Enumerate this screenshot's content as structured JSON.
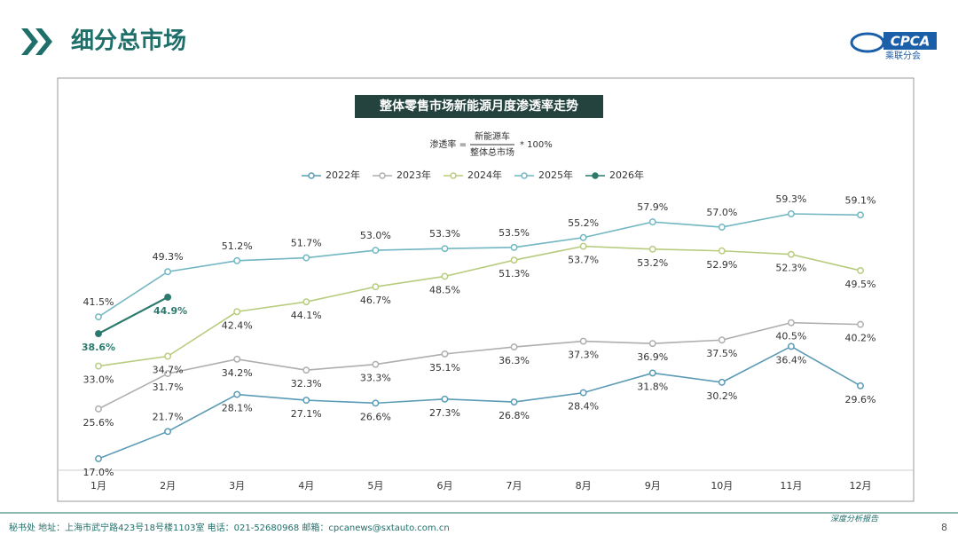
{
  "header": {
    "title": "细分总市场",
    "logo_text": "CPCA",
    "logo_sub": "乘联分会"
  },
  "formula": {
    "lhs": "渗透率 =",
    "numerator": "新能源车",
    "denominator": "整体总市场",
    "factor": "* 100%"
  },
  "footer": {
    "contact": "秘书处   地址：上海市武宁路423号18号楼1103室   电话：021-52680968    邮箱：cpcanews@sxtauto.com.cn",
    "report": "深度分析报告",
    "page": "8"
  },
  "chart_data": {
    "type": "line",
    "title": "整体零售市场新能源月度渗透率走势",
    "categories": [
      "1月",
      "2月",
      "3月",
      "4月",
      "5月",
      "6月",
      "7月",
      "8月",
      "9月",
      "10月",
      "11月",
      "12月"
    ],
    "series": [
      {
        "name": "2022年",
        "color": "#5b9bb5",
        "values": [
          17.0,
          21.7,
          28.1,
          27.1,
          26.6,
          27.3,
          26.8,
          28.4,
          31.8,
          30.2,
          36.4,
          29.6
        ],
        "value_labels": [
          "17.0%",
          "21.7%",
          "28.1%",
          "27.1%",
          "26.6%",
          "27.3%",
          "26.8%",
          "28.4%",
          "31.8%",
          "30.2%",
          "36.4%",
          "29.6%"
        ]
      },
      {
        "name": "2023年",
        "color": "#aeaeae",
        "values": [
          25.6,
          31.7,
          34.2,
          32.3,
          33.3,
          35.1,
          36.3,
          37.3,
          36.9,
          37.5,
          40.5,
          40.2
        ],
        "value_labels": [
          "25.6%",
          "31.7%",
          "34.2%",
          "32.3%",
          "33.3%",
          "35.1%",
          "36.3%",
          "37.3%",
          "36.9%",
          "37.5%",
          "40.5%",
          "40.2%"
        ]
      },
      {
        "name": "2024年",
        "color": "#b8cc80",
        "values": [
          33.0,
          34.7,
          42.4,
          44.1,
          46.7,
          48.5,
          51.3,
          53.7,
          53.2,
          52.9,
          52.3,
          49.5
        ],
        "value_labels": [
          "33.0%",
          "34.7%",
          "42.4%",
          "44.1%",
          "46.7%",
          "48.5%",
          "51.3%",
          "53.7%",
          "53.2%",
          "52.9%",
          "52.3%",
          "49.5%"
        ]
      },
      {
        "name": "2025年",
        "color": "#72b6c2",
        "values": [
          41.5,
          49.3,
          51.2,
          51.7,
          53.0,
          53.3,
          53.5,
          55.2,
          57.9,
          57.0,
          59.3,
          59.1
        ],
        "value_labels": [
          "41.5%",
          "49.3%",
          "51.2%",
          "51.7%",
          "53.0%",
          "53.3%",
          "53.5%",
          "55.2%",
          "57.9%",
          "57.0%",
          "59.3%",
          "59.1%"
        ]
      },
      {
        "name": "2026年",
        "color": "#2c7a6e",
        "values": [
          38.6,
          44.9,
          null,
          null,
          null,
          null,
          null,
          null,
          null,
          null,
          null,
          null
        ],
        "value_labels": [
          "38.6%",
          "44.9%",
          null,
          null,
          null,
          null,
          null,
          null,
          null,
          null,
          null,
          null
        ]
      }
    ],
    "legend": "top"
  }
}
